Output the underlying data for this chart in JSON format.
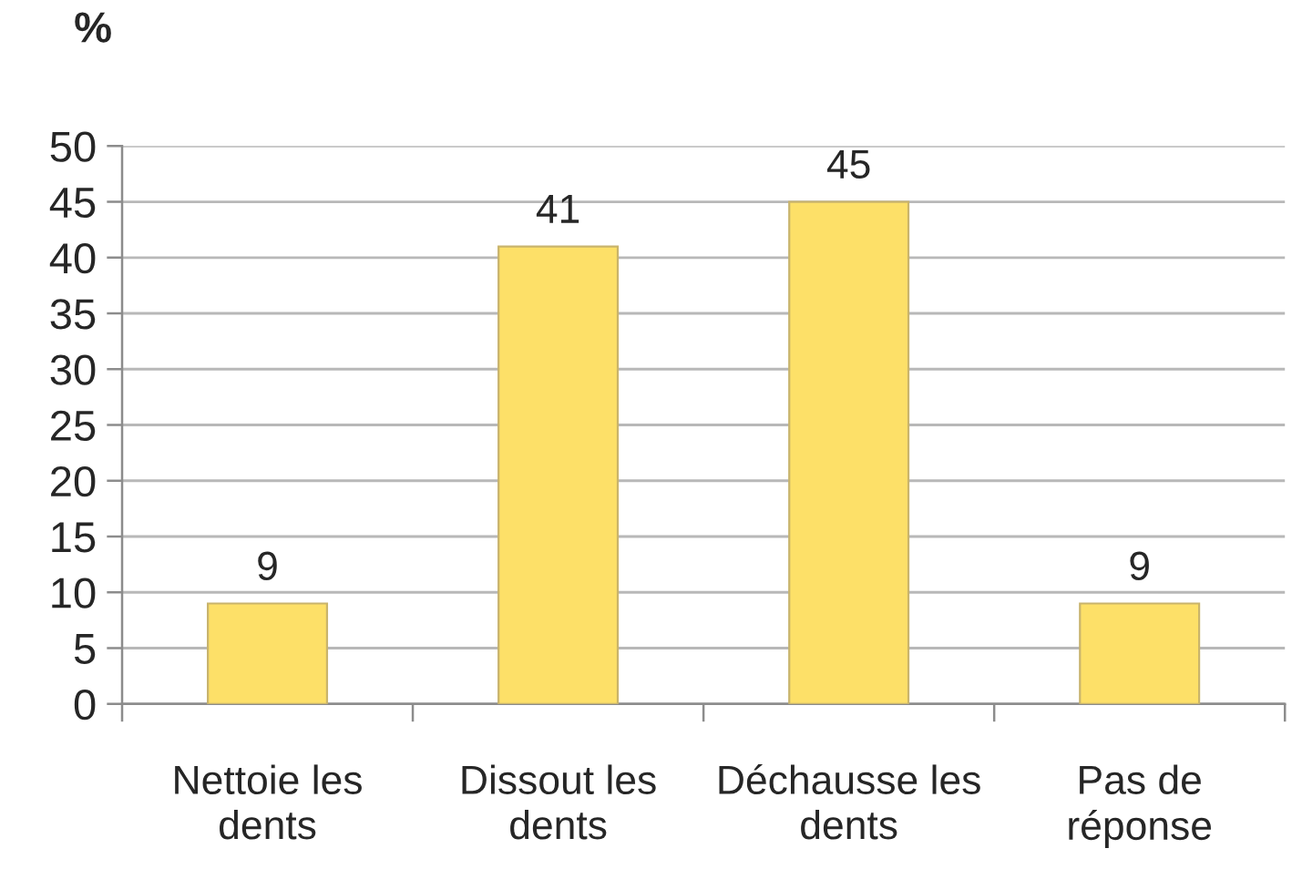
{
  "chart_data": {
    "type": "bar",
    "ylabel": "%",
    "categories": [
      "Nettoie les\ndents",
      "Dissout les\ndents",
      "Déchausse les\ndents",
      "Pas de\nréponse"
    ],
    "values": [
      9,
      41,
      45,
      9
    ],
    "color": "#fde068",
    "ylim": [
      0,
      50
    ],
    "yticks": [
      0,
      5,
      10,
      15,
      20,
      25,
      30,
      35,
      40,
      45,
      50
    ],
    "grid": "y",
    "data_labels": true
  }
}
